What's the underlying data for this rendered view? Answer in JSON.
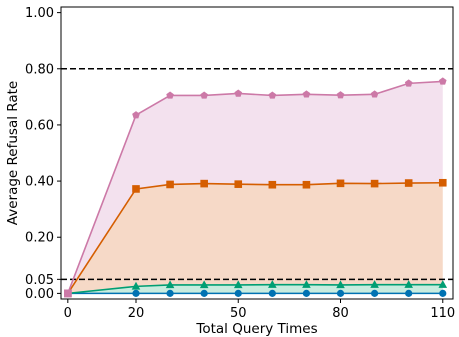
{
  "chart_data": {
    "type": "line",
    "title": "",
    "xlabel": "Total Query Times",
    "ylabel": "Average Refusal Rate",
    "xlim": [
      -2,
      113
    ],
    "ylim": [
      -0.02,
      1.02
    ],
    "xticks": [
      0,
      20,
      50,
      80,
      110
    ],
    "xtick_labels": [
      "0",
      "20",
      "50",
      "80",
      "110"
    ],
    "yticks": [
      0.0,
      0.05,
      0.2,
      0.4,
      0.6,
      0.8,
      1.0
    ],
    "ytick_labels": [
      "0.00",
      "0.05",
      "0.20",
      "0.40",
      "0.60",
      "0.80",
      "1.00"
    ],
    "x": [
      0,
      20,
      30,
      40,
      50,
      60,
      70,
      80,
      90,
      100,
      110
    ],
    "series": [
      {
        "color": "#cc79a7",
        "fill": "#f3e1ee",
        "marker": "pentagon",
        "values": [
          0.0,
          0.635,
          0.705,
          0.705,
          0.712,
          0.705,
          0.709,
          0.706,
          0.709,
          0.748,
          0.755
        ]
      },
      {
        "color": "#d55e00",
        "fill": "#f6d9c7",
        "marker": "square",
        "values": [
          0.0,
          0.372,
          0.388,
          0.391,
          0.389,
          0.387,
          0.387,
          0.392,
          0.391,
          0.393,
          0.394
        ]
      },
      {
        "color": "#009e73",
        "fill": "#c8ecdf",
        "marker": "triangle",
        "values": [
          0.0,
          0.025,
          0.03,
          0.03,
          0.03,
          0.031,
          0.031,
          0.03,
          0.031,
          0.031,
          0.031
        ]
      },
      {
        "color": "#0072b2",
        "fill": null,
        "marker": "circle",
        "values": [
          0.0,
          0.0,
          0.0,
          0.0,
          0.0,
          0.0,
          0.0,
          0.0,
          0.0,
          0.0,
          0.0
        ]
      }
    ],
    "reference_lines": [
      {
        "y": 0.8,
        "style": "dashed",
        "color": "#000000"
      },
      {
        "y": 0.05,
        "style": "dashed",
        "color": "#000000"
      }
    ],
    "grid": false,
    "legend": "none"
  }
}
